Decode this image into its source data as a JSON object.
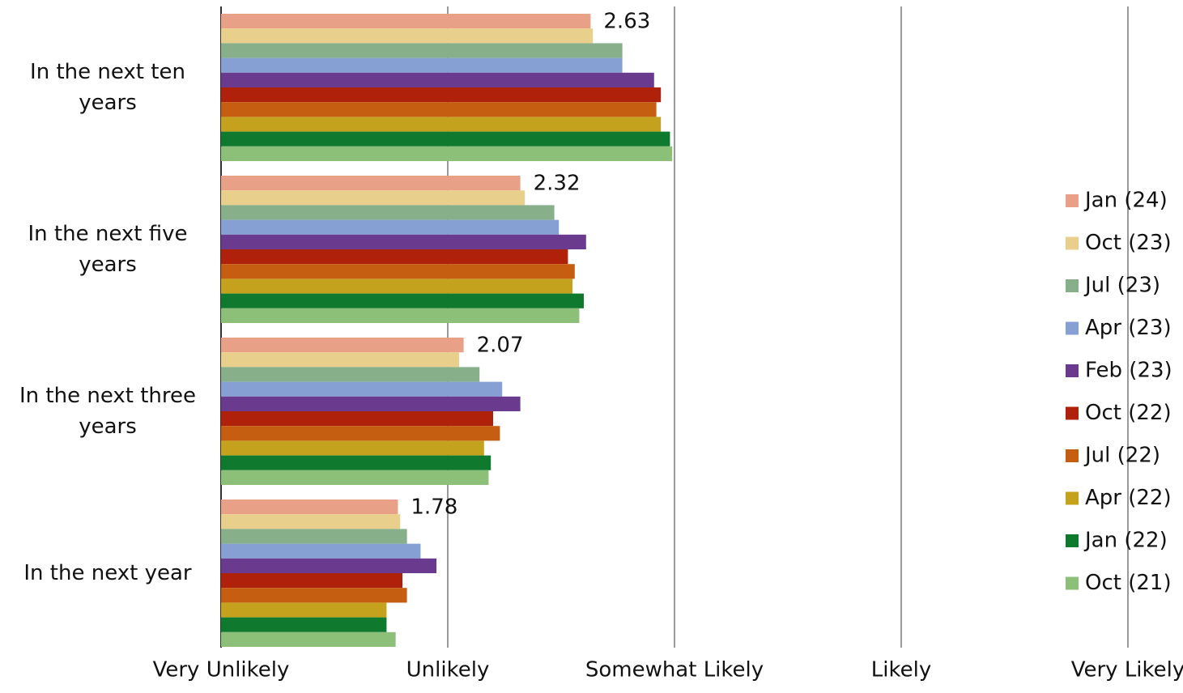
{
  "chart_data": {
    "type": "hbar",
    "categories": [
      "In the next ten years",
      "In the next five years",
      "In the next three years",
      "In the next year"
    ],
    "series": [
      {
        "name": "Jan (24)",
        "color": "#e8a086",
        "values": [
          2.63,
          2.32,
          2.07,
          1.78
        ],
        "show_values": true
      },
      {
        "name": "Oct (23)",
        "color": "#e8d08c",
        "values": [
          2.64,
          2.34,
          2.05,
          1.79
        ]
      },
      {
        "name": "Jul (23)",
        "color": "#87b08a",
        "values": [
          2.77,
          2.47,
          2.14,
          1.82
        ]
      },
      {
        "name": "Apr (23)",
        "color": "#87a0d4",
        "values": [
          2.77,
          2.49,
          2.24,
          1.88
        ]
      },
      {
        "name": "Feb (23)",
        "color": "#6a3a8e",
        "values": [
          2.91,
          2.61,
          2.32,
          1.95
        ]
      },
      {
        "name": "Oct (22)",
        "color": "#b0210c",
        "values": [
          2.94,
          2.53,
          2.2,
          1.8
        ]
      },
      {
        "name": "Jul (22)",
        "color": "#c65e12",
        "values": [
          2.92,
          2.56,
          2.23,
          1.82
        ]
      },
      {
        "name": "Apr (22)",
        "color": "#c5a21e",
        "values": [
          2.94,
          2.55,
          2.16,
          1.73
        ]
      },
      {
        "name": "Jan (22)",
        "color": "#0f7a2e",
        "values": [
          2.98,
          2.6,
          2.19,
          1.73
        ]
      },
      {
        "name": "Oct (21)",
        "color": "#8cbf78",
        "values": [
          2.99,
          2.58,
          2.18,
          1.77
        ]
      }
    ],
    "xlim": [
      1,
      5
    ],
    "xticks": [
      {
        "value": 1,
        "label": "Very Unlikely"
      },
      {
        "value": 2,
        "label": "Unlikely"
      },
      {
        "value": 3,
        "label": "Somewhat Likely"
      },
      {
        "value": 4,
        "label": "Likely"
      },
      {
        "value": 5,
        "label": "Very Likely"
      }
    ],
    "grid": true,
    "legend": "right"
  }
}
